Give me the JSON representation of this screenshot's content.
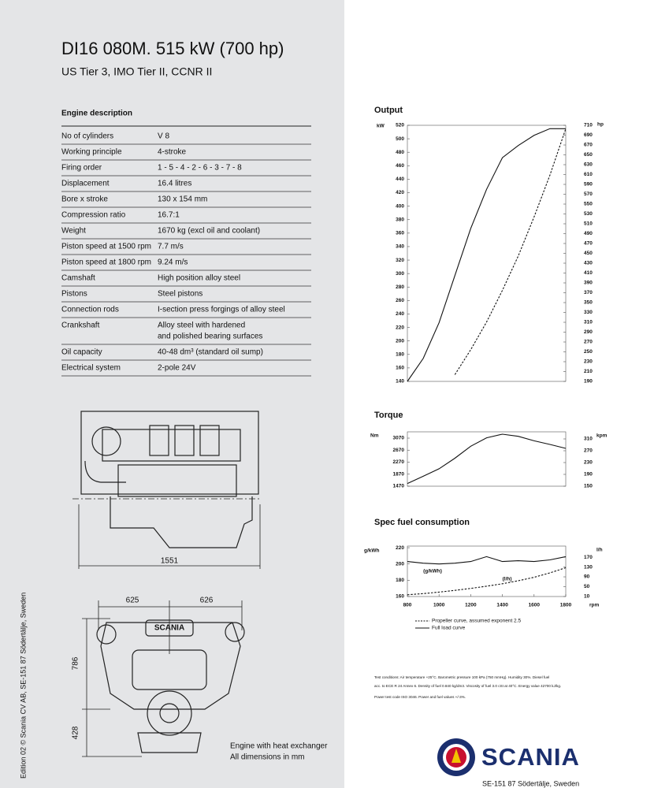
{
  "header": {
    "title": "DI16 080M. 515 kW (700 hp)",
    "subtitle": "US Tier 3, IMO Tier II, CCNR II"
  },
  "engine_description": {
    "title": "Engine description",
    "rows": [
      {
        "label": "No of cylinders",
        "value": [
          "V 8"
        ]
      },
      {
        "label": "Working principle",
        "value": [
          "4-stroke"
        ]
      },
      {
        "label": "Firing order",
        "value": [
          "1 - 5 - 4 - 2 - 6 - 3 - 7 - 8"
        ]
      },
      {
        "label": "Displacement",
        "value": [
          "16.4 litres"
        ]
      },
      {
        "label": "Bore x stroke",
        "value": [
          "130 x 154 mm"
        ]
      },
      {
        "label": "Compression ratio",
        "value": [
          "16.7:1"
        ]
      },
      {
        "label": "Weight",
        "value": [
          "1670 kg (excl oil and coolant)"
        ]
      },
      {
        "label": "Piston speed at 1500 rpm",
        "value": [
          "7.7 m/s"
        ]
      },
      {
        "label": "Piston speed at 1800 rpm",
        "value": [
          "9.24 m/s"
        ]
      },
      {
        "label": "Camshaft",
        "value": [
          "High position alloy steel"
        ]
      },
      {
        "label": "Pistons",
        "value": [
          "Steel pistons"
        ]
      },
      {
        "label": "Connection rods",
        "value": [
          "I-section press forgings of alloy steel"
        ]
      },
      {
        "label": "Crankshaft",
        "value": [
          "Alloy steel with hardened",
          "and polished bearing surfaces"
        ]
      },
      {
        "label": "Oil capacity",
        "value": [
          "40-48 dm³ (standard oil sump)"
        ]
      },
      {
        "label": "Electrical system",
        "value": [
          "2-pole 24V"
        ]
      }
    ]
  },
  "drawings": {
    "length": 1551,
    "half_width_left": 625,
    "half_width_right": 626,
    "height_upper": 786,
    "height_lower": 428,
    "grille_label": "SCANIA",
    "caption": [
      "Engine with heat exchanger",
      "All dimensions in mm"
    ]
  },
  "edition": "Edition 02 © Scania CV AB, SE-151 87 Södertälje, Sweden",
  "chart_data": [
    {
      "type": "line",
      "title": "Output",
      "y_label": "kW",
      "y2_label": "hp",
      "x": [
        800,
        900,
        1000,
        1100,
        1200,
        1300,
        1400,
        1500,
        1600,
        1700,
        1800
      ],
      "xlim": [
        800,
        1800
      ],
      "ylim": [
        140,
        520
      ],
      "yticks": [
        140,
        160,
        180,
        200,
        220,
        240,
        260,
        280,
        300,
        320,
        340,
        360,
        380,
        400,
        420,
        440,
        460,
        480,
        500,
        520
      ],
      "y2lim": [
        190,
        710
      ],
      "y2ticks": [
        190,
        210,
        230,
        250,
        270,
        290,
        310,
        330,
        350,
        370,
        390,
        410,
        430,
        450,
        470,
        490,
        510,
        530,
        550,
        570,
        590,
        610,
        630,
        650,
        670,
        690,
        710
      ],
      "series": [
        {
          "color": "#111111",
          "dashed": false,
          "values": [
            140,
            174,
            227,
            297,
            367,
            425,
            472,
            490,
            505,
            515,
            515
          ]
        },
        {
          "color": "#111111",
          "dashed": true,
          "values": [
            null,
            null,
            null,
            150,
            187,
            228,
            275,
            326,
            384,
            446,
            515
          ]
        }
      ]
    },
    {
      "type": "line",
      "title": "Torque",
      "y_label": "Nm",
      "y2_label": "kpm",
      "x": [
        800,
        900,
        1000,
        1100,
        1200,
        1300,
        1400,
        1500,
        1600,
        1700,
        1800
      ],
      "xlim": [
        800,
        1800
      ],
      "ylim": [
        1470,
        3280
      ],
      "yticks": [
        1470,
        1870,
        2270,
        2670,
        3070
      ],
      "y2lim": [
        150,
        334
      ],
      "y2ticks": [
        150,
        190,
        230,
        270,
        310
      ],
      "series": [
        {
          "color": "#111111",
          "dashed": false,
          "values": [
            1560,
            1800,
            2050,
            2400,
            2800,
            3080,
            3200,
            3130,
            2980,
            2860,
            2730
          ]
        }
      ]
    },
    {
      "type": "line",
      "title": "Spec fuel consumption",
      "y_label": "g/kWh",
      "y2_label": "l/h",
      "x_label": "rpm",
      "x": [
        800,
        900,
        1000,
        1100,
        1200,
        1300,
        1400,
        1500,
        1600,
        1700,
        1800
      ],
      "xlim": [
        800,
        1800
      ],
      "xticks": [
        800,
        1000,
        1200,
        1400,
        1600,
        1800
      ],
      "ylim": [
        160,
        222
      ],
      "yticks": [
        160,
        180,
        200,
        220
      ],
      "y2lim": [
        10,
        215
      ],
      "y2ticks": [
        10,
        50,
        90,
        130,
        170
      ],
      "series": [
        {
          "name": "(g/kWh)",
          "color": "#111111",
          "dashed": false,
          "values": [
            203,
            201,
            200,
            201,
            203,
            209,
            203,
            204,
            203,
            205,
            209
          ]
        },
        {
          "name": "(l/h)",
          "color": "#111111",
          "dashed": true,
          "axis": "y2",
          "values": [
            17,
            22,
            28,
            35,
            43,
            52,
            62,
            74,
            88,
            106,
            127
          ]
        }
      ]
    }
  ],
  "curve_legend": [
    {
      "label": "Propeller curve, assumed exponent 2.5",
      "dashed": true
    },
    {
      "label": "Full load curve",
      "dashed": false
    }
  ],
  "test_conditions": [
    "Test conditions: Air temperature +25°C. Barometric pressure 100 kPa (750 mmHg). Humidity 30%. Diesel fuel",
    "acc. to ECE R 24 Annex 6. Density of fuel 0.840 kg/dm3. Viscosity of fuel 3.0 cSt at 40°C. Energy value 42700 kJ/kg.",
    "Power test code ISO 3046. Power and fuel values +/-3%."
  ],
  "logo": {
    "name": "SCANIA",
    "address": "SE-151 87 Södertälje, Sweden"
  }
}
